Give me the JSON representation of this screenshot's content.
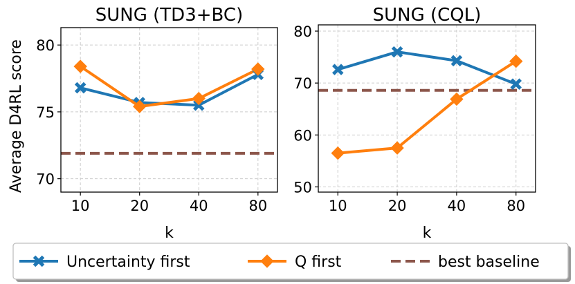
{
  "chart_data": [
    {
      "type": "line",
      "title": "SUNG (TD3+BC)",
      "xlabel": "k",
      "ylabel": "Average D4RL score",
      "categories": [
        "10",
        "20",
        "40",
        "80"
      ],
      "yticks": [
        "70",
        "75",
        "80"
      ],
      "ylim": [
        69,
        81.3
      ],
      "grid": true,
      "series": [
        {
          "name": "Uncertainty first",
          "color": "#1f77b4",
          "marker": "x",
          "values": [
            76.8,
            75.7,
            75.5,
            77.8
          ]
        },
        {
          "name": "Q first",
          "color": "#ff7f0e",
          "marker": "diamond",
          "values": [
            78.4,
            75.4,
            76.0,
            78.2
          ]
        }
      ],
      "baseline": {
        "name": "best baseline",
        "color": "#8c564b",
        "value": 71.9
      }
    },
    {
      "type": "line",
      "title": "SUNG (CQL)",
      "xlabel": "k",
      "ylabel": "",
      "categories": [
        "10",
        "20",
        "40",
        "80"
      ],
      "yticks": [
        "50",
        "60",
        "70",
        "80"
      ],
      "ylim": [
        49,
        81.2
      ],
      "grid": true,
      "series": [
        {
          "name": "Uncertainty first",
          "color": "#1f77b4",
          "marker": "x",
          "values": [
            72.6,
            76.0,
            74.3,
            69.8
          ]
        },
        {
          "name": "Q first",
          "color": "#ff7f0e",
          "marker": "diamond",
          "values": [
            56.5,
            57.5,
            66.9,
            74.2
          ]
        }
      ],
      "baseline": {
        "name": "best baseline",
        "color": "#8c564b",
        "value": 68.6
      }
    }
  ],
  "legend": {
    "placement": "bottom",
    "entries": [
      {
        "label": "Uncertainty first",
        "color": "#1f77b4",
        "marker": "x",
        "style": "solid"
      },
      {
        "label": "Q first",
        "color": "#ff7f0e",
        "marker": "diamond",
        "style": "solid"
      },
      {
        "label": "best baseline",
        "color": "#8c564b",
        "marker": "none",
        "style": "dashed"
      }
    ]
  }
}
